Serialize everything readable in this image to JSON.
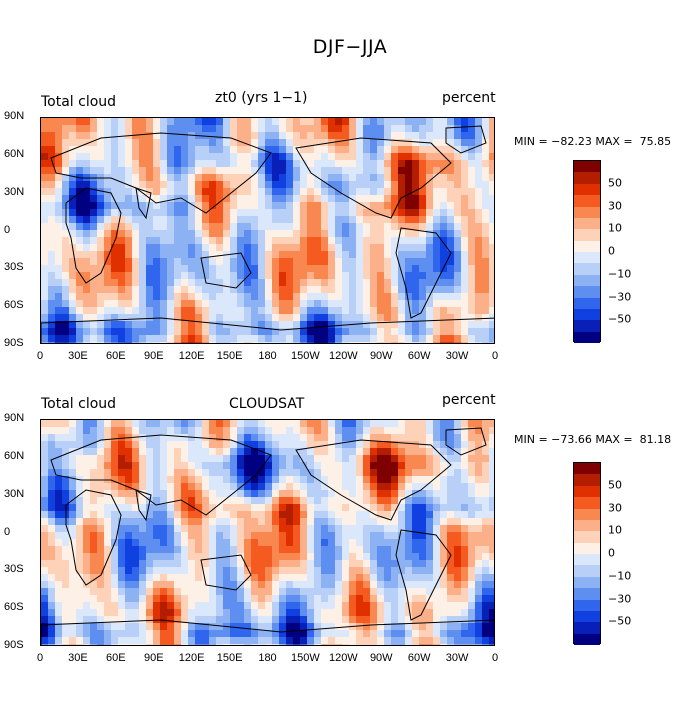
{
  "figure_title": "DJF−JJA",
  "panels": [
    {
      "left_title": "Total cloud",
      "center_title": "zt0 (yrs 1−1)",
      "right_title": "percent",
      "stats": "MIN = −82.23 MAX =  75.85"
    },
    {
      "left_title": "Total cloud",
      "center_title": "CLOUDSAT",
      "right_title": "percent",
      "stats": "MIN = −73.66 MAX =  81.18"
    }
  ],
  "lat_ticks": [
    "90N",
    "60N",
    "30N",
    "0",
    "30S",
    "60S",
    "90S"
  ],
  "lon_ticks": [
    "0",
    "30E",
    "60E",
    "90E",
    "120E",
    "150E",
    "180",
    "150W",
    "120W",
    "90W",
    "60W",
    "30W",
    "0"
  ],
  "colorbar": {
    "labels": [
      "50",
      "30",
      "10",
      "0",
      "−10",
      "−30",
      "−50"
    ],
    "colors": [
      "#7f0000",
      "#b31d00",
      "#e03000",
      "#f55a20",
      "#f88850",
      "#fbb08a",
      "#fdd2b8",
      "#fdf0e6",
      "#dbe8fb",
      "#b8d0f8",
      "#8db2f3",
      "#5e8ef0",
      "#3066ee",
      "#1040e0",
      "#0820b8",
      "#000080"
    ]
  }
}
